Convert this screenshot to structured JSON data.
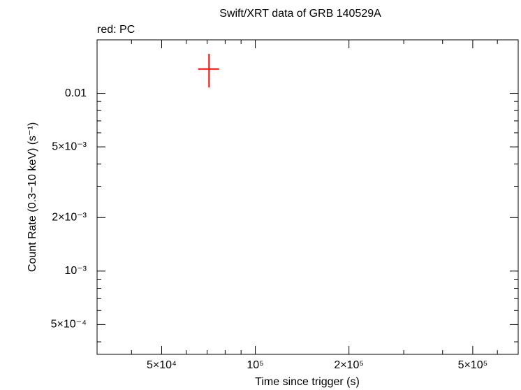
{
  "chart_data": {
    "type": "errorbar",
    "title": "Swift/XRT data of GRB 140529A",
    "subtitle": "red: PC",
    "xlabel": "Time since trigger (s)",
    "ylabel": "Count Rate (0.3−10 keV) (s⁻¹)",
    "xlog": true,
    "ylog": true,
    "xlim": [
      31000,
      700000
    ],
    "ylim": [
      0.00034,
      0.02
    ],
    "xticks": [
      {
        "value": 50000,
        "label": "5×10⁴"
      },
      {
        "value": 100000,
        "label": "10⁵"
      },
      {
        "value": 200000,
        "label": "2×10⁵"
      },
      {
        "value": 500000,
        "label": "5×10⁵"
      }
    ],
    "xticks_minor": [
      40000,
      60000,
      70000,
      80000,
      90000,
      300000,
      400000,
      600000,
      700000
    ],
    "yticks": [
      {
        "value": 0.0005,
        "label": "5×10⁻⁴"
      },
      {
        "value": 0.001,
        "label": "10⁻³"
      },
      {
        "value": 0.002,
        "label": "2×10⁻³"
      },
      {
        "value": 0.005,
        "label": "5×10⁻³"
      },
      0.01
    ],
    "yticks_minor": [
      0.0004,
      0.0006,
      0.0007,
      0.0008,
      0.0009,
      0.003,
      0.004,
      0.006,
      0.007,
      0.008,
      0.009
    ],
    "series": [
      {
        "color": "#ff0000",
        "x": [
          71000
        ],
        "xerr_low": [
          5500
        ],
        "xerr_high": [
          5500
        ],
        "y": [
          0.0137
        ],
        "yerr_low": [
          0.0029
        ],
        "yerr_high": [
          0.003
        ]
      }
    ]
  }
}
